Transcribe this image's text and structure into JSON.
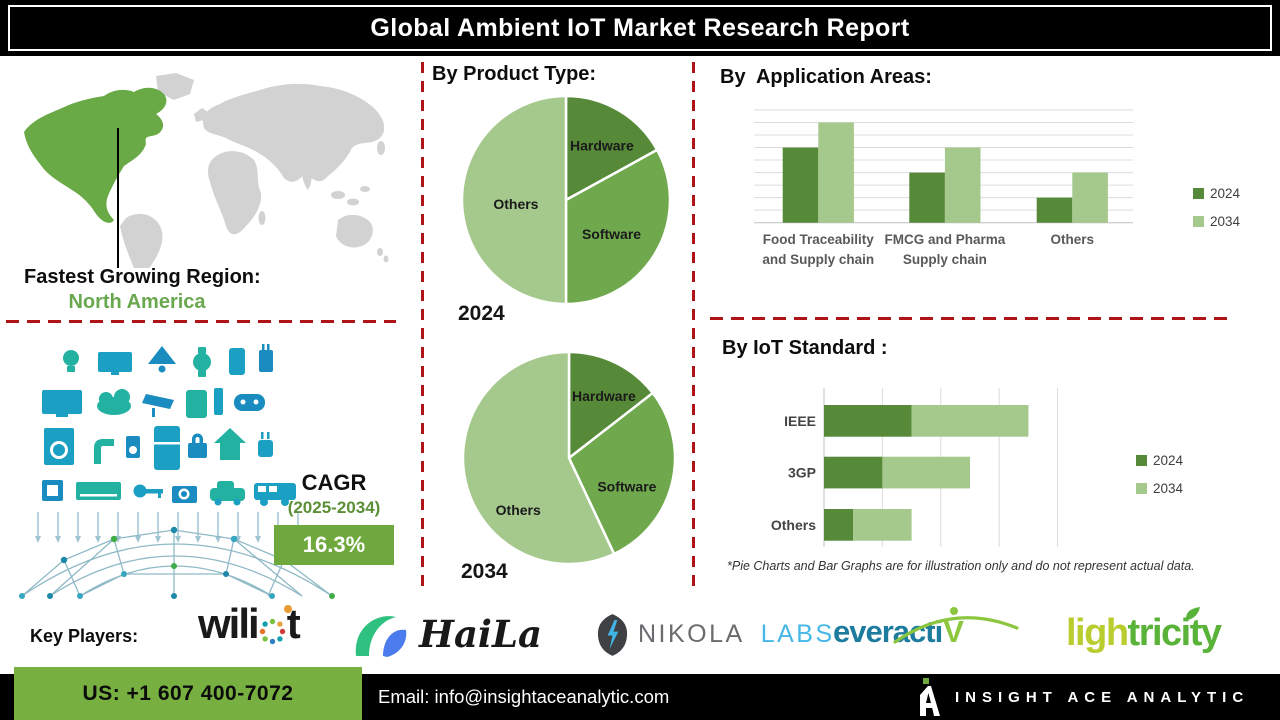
{
  "palette": {
    "dash_red": "#b01418",
    "map_gray": "#d2d2d2",
    "map_green": "#6aaa46",
    "green_text": "#6aa84f",
    "cagr_green": "#6fa83c",
    "cagr_text_green": "#5a8f38",
    "footer_green": "#77b041",
    "dark_green": "#568a39",
    "mid_green": "#70a84e",
    "light_green": "#a5c88d",
    "teal": "#1b9fc2"
  },
  "header": {
    "title": "Global Ambient IoT Market Research Report"
  },
  "fastest_growing": {
    "label": "Fastest Growing Region:",
    "value": "North America"
  },
  "cagr": {
    "label": "CAGR",
    "period": "(2025-2034)",
    "value": "16.3%"
  },
  "sections": {
    "product_type": {
      "heading": "By Product Type:",
      "year1": "2024",
      "year2": "2034"
    },
    "application": {
      "heading": "By  Application Areas:"
    },
    "iot_standard": {
      "heading": "By IoT Standard :"
    },
    "footnote": "*Pie Charts and Bar Graphs are for illustration only and do not represent actual data."
  },
  "key_players": {
    "label": "Key Players:",
    "companies": [
      "Wiliot",
      "HaiLa",
      "Nikola Labs",
      "Everactiv",
      "Lightricity"
    ],
    "logos": {
      "wiliot": {
        "pre": "wili",
        "post": "t"
      },
      "haila": {
        "text": "HaiLa"
      },
      "nikola": {
        "name": "NIKOLA",
        "suffix": "LABS"
      },
      "everactiv": {
        "pre": "everacti",
        "v": "V"
      },
      "lightricity": {
        "pre": "ligh",
        "post": "tricity"
      }
    }
  },
  "footer": {
    "phone": "US: +1 607 400-7072",
    "email": "Email: info@insightaceanalytic.com",
    "brand": "INSIGHT ACE ANALYTIC"
  },
  "icons": {
    "wiliot-o-icon": "multicolor-dotted-ring",
    "haila-arc-icon": "green-blue-arc",
    "nikola-shield-icon": "shield-with-lightning-bolt",
    "everactiv-arc-icon": "green-arc",
    "lightricity-leaf-icon": "leaf",
    "insight-ace-icon": "stylized-letter-A-with-green-dot",
    "world-map": "world-continents-silhouette",
    "iot-devices-illustration": "connected-devices-over-network-dome"
  },
  "chart_data": [
    {
      "type": "pie",
      "title": "By Product Type: 2024",
      "year": "2024",
      "labels": [
        "Hardware",
        "Software",
        "Others"
      ],
      "values": [
        17,
        33,
        50
      ],
      "colors": [
        "#568a39",
        "#70a84e",
        "#a5c88d"
      ],
      "legend_position": "none"
    },
    {
      "type": "pie",
      "title": "By Product Type: 2034",
      "year": "2034",
      "labels": [
        "Hardware",
        "Software",
        "Others"
      ],
      "values": [
        14.5,
        28.5,
        57
      ],
      "colors": [
        "#568a39",
        "#70a84e",
        "#a5c88d"
      ],
      "legend_position": "none"
    },
    {
      "type": "bar",
      "title": "By Application Areas:",
      "categories": [
        "Food Traceability\nand Supply chain",
        "FMCG and Pharma\nSupply chain",
        "Others"
      ],
      "series": [
        {
          "name": "2024",
          "color": "#568a39",
          "values": [
            6,
            4,
            2
          ]
        },
        {
          "name": "2034",
          "color": "#a5c88d",
          "values": [
            8,
            6,
            4
          ]
        }
      ],
      "ylim": [
        0,
        9
      ],
      "ytick_step": 1,
      "grid": true,
      "legend_position": "right"
    },
    {
      "type": "bar-horizontal-stacked",
      "title": "By IoT Standard :",
      "categories": [
        "IEEE",
        "3GP",
        "Others"
      ],
      "series": [
        {
          "name": "2024",
          "color": "#568a39",
          "values": [
            1.5,
            1.0,
            0.5
          ]
        },
        {
          "name": "2034",
          "color": "#a5c88d",
          "values": [
            2.0,
            1.5,
            1.0
          ]
        }
      ],
      "xlim": [
        0,
        4
      ],
      "xtick_step": 1,
      "grid": true,
      "legend_position": "right"
    }
  ]
}
